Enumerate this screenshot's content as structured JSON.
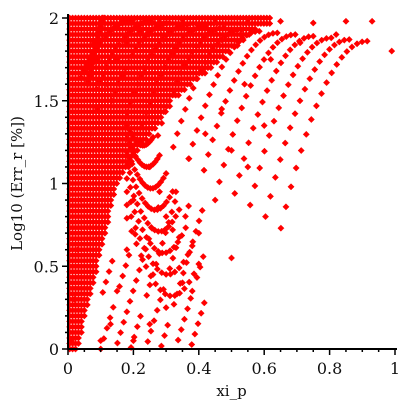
{
  "chart_data": {
    "type": "scatter",
    "title": "",
    "xlabel": "xi_p",
    "ylabel": "Log10 (Err_r [%])",
    "xlim": [
      0,
      1
    ],
    "ylim": [
      0,
      2
    ],
    "x_ticks": [
      "0",
      "0.2",
      "0.4",
      "0.6",
      "0.8",
      "1"
    ],
    "y_ticks": [
      "0",
      "0.5",
      "1",
      "1.5",
      "2"
    ],
    "grid": false,
    "legend": "none",
    "marker_color": "#ff0000",
    "marker": "diamond",
    "series": [
      {
        "points": [
          [
            0.01,
            0.05
          ],
          [
            0.02,
            0.3
          ],
          [
            0.03,
            0.6
          ],
          [
            0.04,
            0.9
          ],
          [
            0.05,
            1.1
          ],
          [
            0.07,
            1.3
          ],
          [
            0.09,
            1.45
          ],
          [
            0.12,
            1.6
          ],
          [
            0.15,
            1.75
          ],
          [
            0.18,
            1.85
          ],
          [
            0.22,
            1.92
          ],
          [
            0.28,
            1.97
          ],
          [
            0.35,
            1.99
          ],
          [
            0.45,
            1.99
          ],
          [
            0.55,
            1.99
          ],
          [
            0.65,
            1.98
          ],
          [
            0.75,
            1.97
          ],
          [
            0.85,
            1.98
          ],
          [
            0.93,
            1.98
          ],
          [
            0.99,
            1.8
          ],
          [
            0.82,
            1.9
          ],
          [
            0.71,
            1.85
          ],
          [
            0.62,
            1.75
          ],
          [
            0.54,
            1.6
          ],
          [
            0.47,
            1.45
          ],
          [
            0.42,
            1.3
          ],
          [
            0.37,
            1.15
          ],
          [
            0.33,
            0.95
          ],
          [
            0.32,
            0.72
          ],
          [
            0.3,
            0.8
          ],
          [
            0.28,
            0.95
          ],
          [
            0.25,
            1.1
          ],
          [
            0.22,
            1.25
          ],
          [
            0.2,
            0.9
          ],
          [
            0.18,
            0.6
          ],
          [
            0.15,
            0.35
          ],
          [
            0.13,
            0.15
          ],
          [
            0.1,
            0.05
          ],
          [
            0.35,
            0.4
          ],
          [
            0.3,
            0.25
          ],
          [
            0.25,
            0.15
          ],
          [
            0.2,
            0.05
          ],
          [
            0.38,
            0.35
          ],
          [
            0.09,
            1.75
          ],
          [
            0.08,
            1.85
          ],
          [
            0.1,
            1.95
          ],
          [
            0.11,
            2.0
          ],
          [
            0.07,
            1.65
          ],
          [
            0.55,
            1.1
          ],
          [
            0.5,
            1.2
          ],
          [
            0.6,
            1.35
          ],
          [
            0.45,
            0.9
          ],
          [
            0.4,
            0.7
          ],
          [
            0.5,
            0.55
          ]
        ]
      }
    ]
  }
}
